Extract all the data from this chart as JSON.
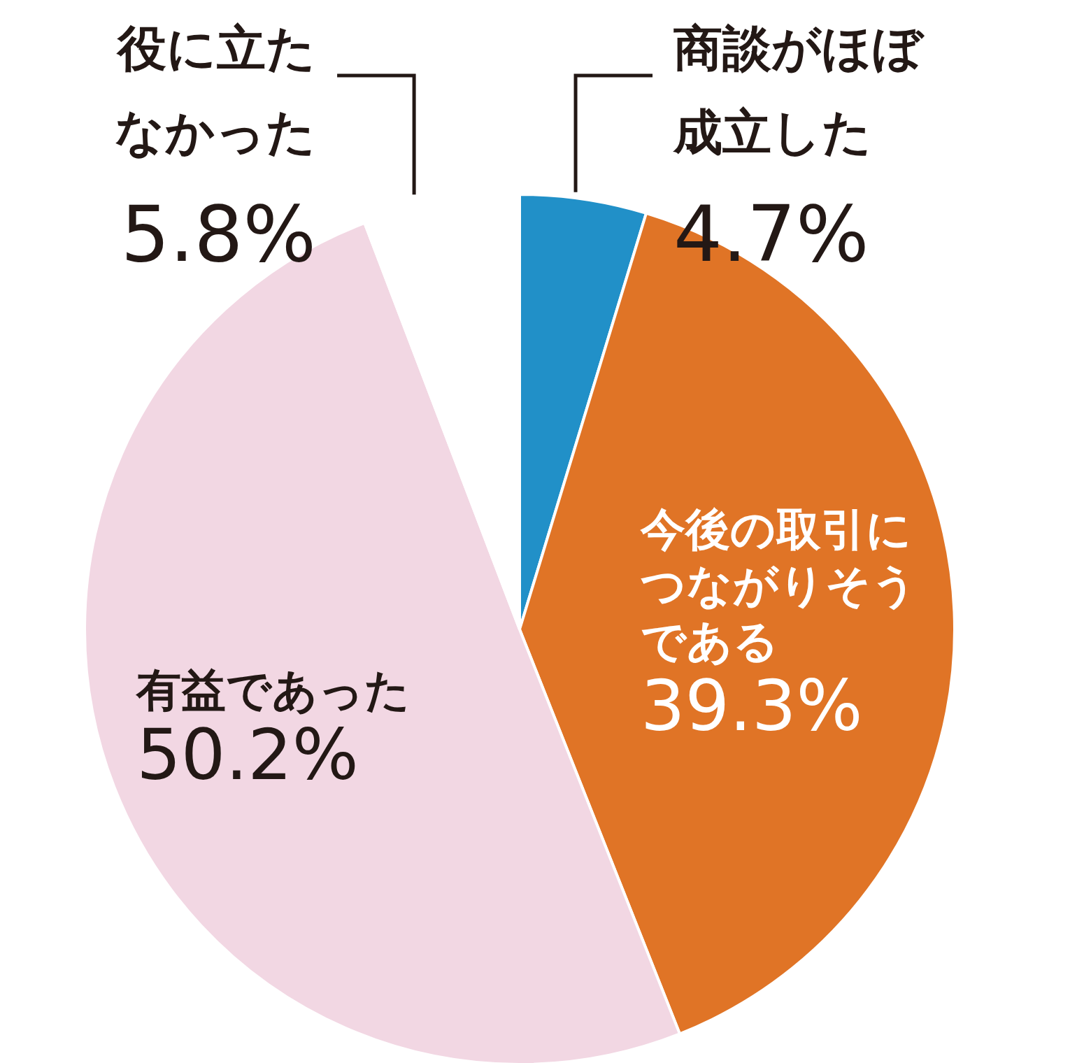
{
  "chart_data": {
    "type": "pie",
    "categories": [
      "商談がほぼ成立した",
      "今後の取引につながりそうである",
      "有益であった",
      "役に立たなかった"
    ],
    "values": [
      4.7,
      39.3,
      50.2,
      5.8
    ],
    "colors": [
      "#2190c8",
      "#e07426",
      "#f2d7e3",
      "#ffffff"
    ],
    "value_labels": [
      "4.7%",
      "39.3%",
      "50.2%",
      "5.8%"
    ]
  }
}
